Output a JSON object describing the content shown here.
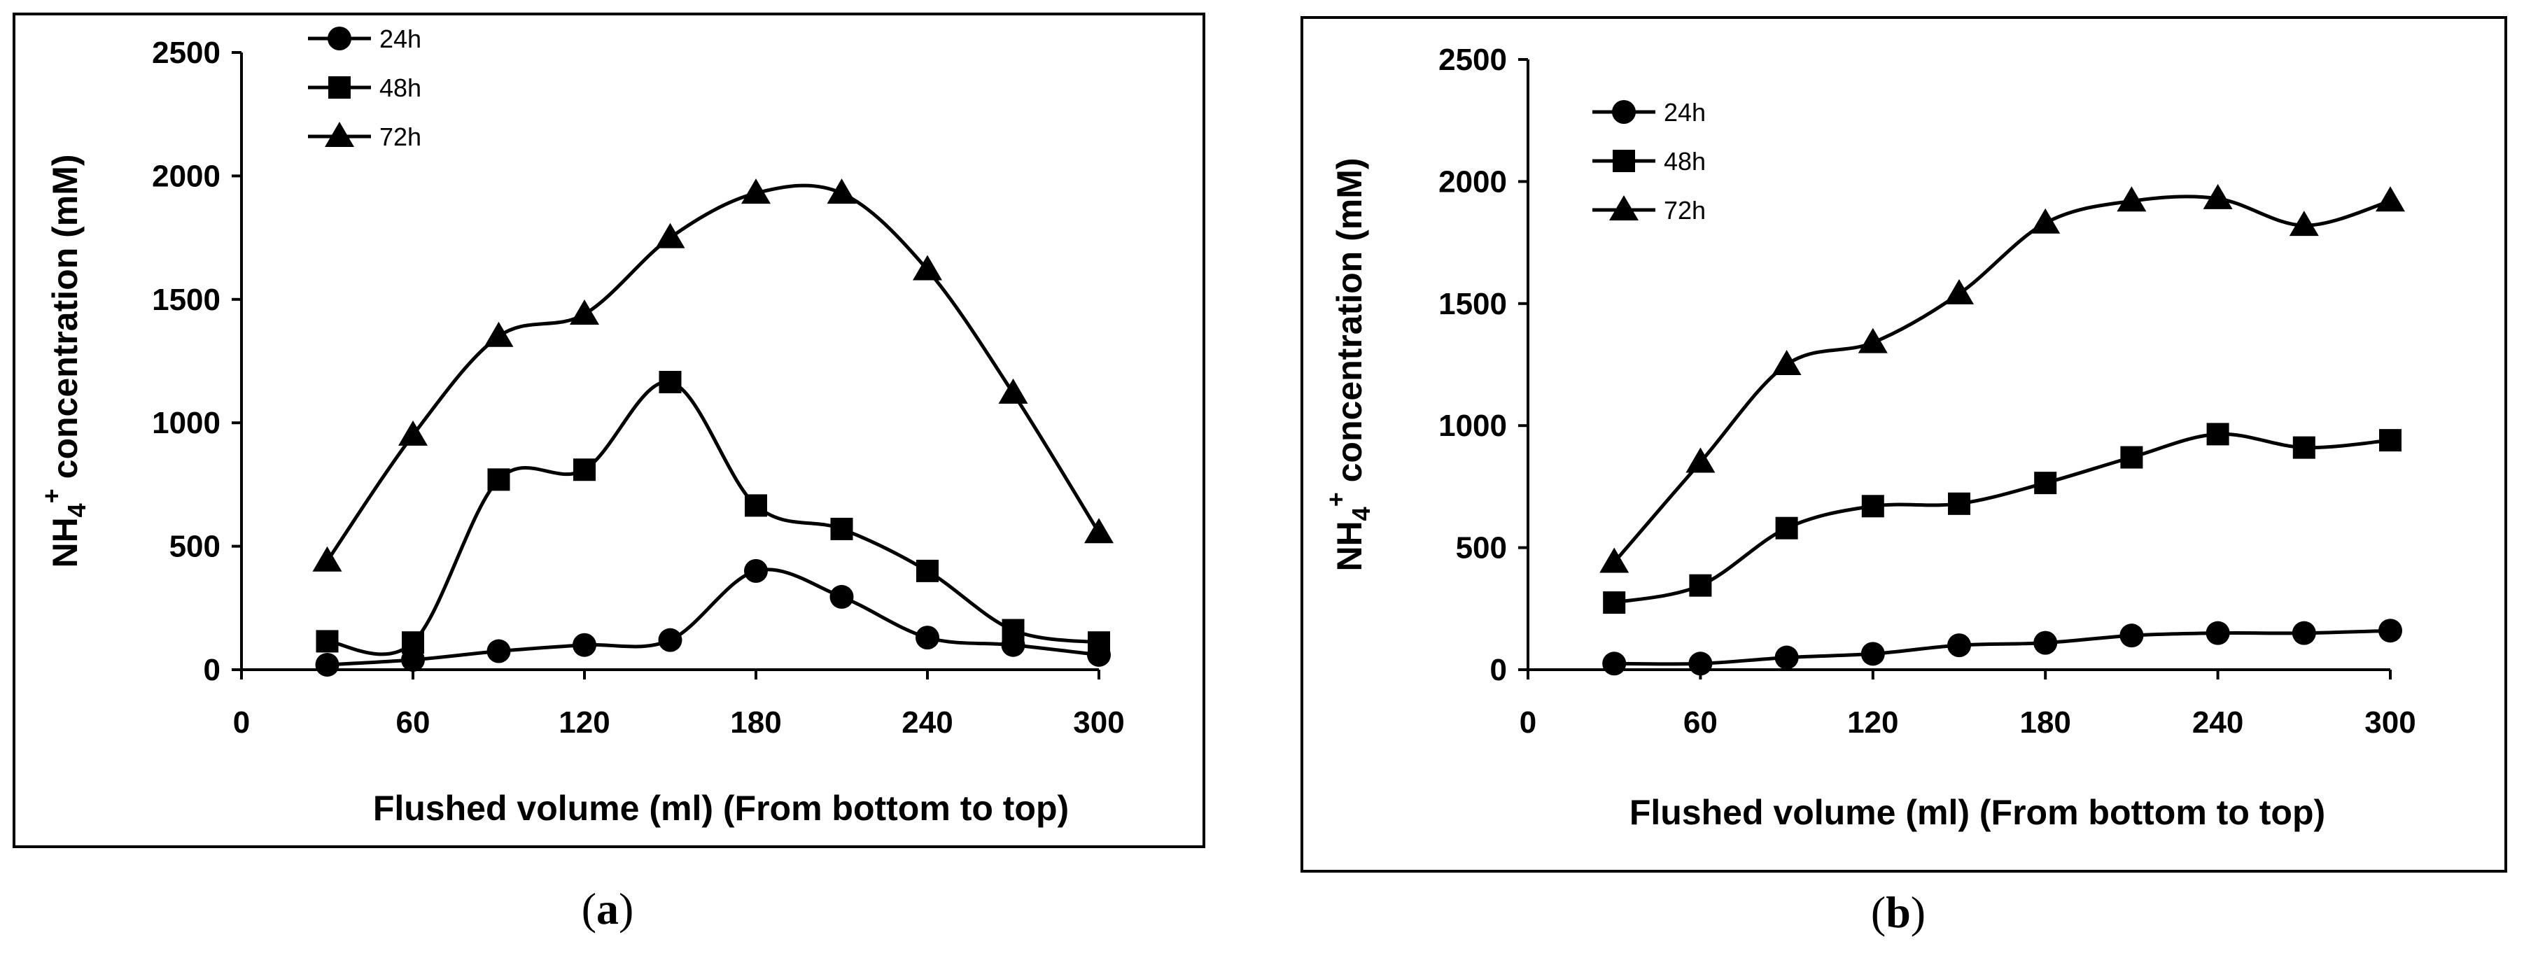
{
  "chart_data": [
    {
      "type": "line",
      "panel_label": "a",
      "title": "",
      "xlabel": "Flushed volume (ml)  (From bottom to top)",
      "ylabel_main": "NH",
      "ylabel_sub": "4",
      "ylabel_sup": "+",
      "ylabel_rest": " concentration (mM)",
      "xlim": [
        0,
        300
      ],
      "ylim": [
        0,
        2500
      ],
      "xticks": [
        "0",
        "60",
        "120",
        "180",
        "240",
        "300"
      ],
      "yticks": [
        "0",
        "500",
        "1000",
        "1500",
        "2000",
        "2500"
      ],
      "legend_position": "top-left",
      "series": [
        {
          "name": "24h",
          "marker": "circle",
          "x": [
            30,
            60,
            90,
            120,
            150,
            180,
            210,
            240,
            270,
            300
          ],
          "values": [
            20,
            40,
            75,
            100,
            120,
            400,
            295,
            130,
            100,
            60
          ]
        },
        {
          "name": "48h",
          "marker": "square",
          "x": [
            30,
            60,
            90,
            120,
            150,
            180,
            210,
            240,
            270,
            300
          ],
          "values": [
            115,
            110,
            770,
            810,
            1165,
            665,
            570,
            400,
            160,
            110
          ]
        },
        {
          "name": "72h",
          "marker": "triangle",
          "x": [
            30,
            60,
            90,
            120,
            150,
            180,
            210,
            240,
            270,
            300
          ],
          "values": [
            440,
            950,
            1350,
            1440,
            1750,
            1930,
            1930,
            1620,
            1120,
            555
          ]
        }
      ]
    },
    {
      "type": "line",
      "panel_label": "b",
      "title": "",
      "xlabel": "Flushed volume (ml)  (From bottom to top)",
      "ylabel_main": "NH",
      "ylabel_sub": "4",
      "ylabel_sup": "+",
      "ylabel_rest": " concentration (mM)",
      "xlim": [
        0,
        300
      ],
      "ylim": [
        0,
        2500
      ],
      "xticks": [
        "0",
        "60",
        "120",
        "180",
        "240",
        "300"
      ],
      "yticks": [
        "0",
        "500",
        "1000",
        "1500",
        "2000",
        "2500"
      ],
      "legend_position": "top-left",
      "series": [
        {
          "name": "24h",
          "marker": "circle",
          "x": [
            30,
            60,
            90,
            120,
            150,
            180,
            210,
            240,
            270,
            300
          ],
          "values": [
            25,
            25,
            50,
            65,
            100,
            110,
            140,
            150,
            150,
            160
          ]
        },
        {
          "name": "48h",
          "marker": "square",
          "x": [
            30,
            60,
            90,
            120,
            150,
            180,
            210,
            240,
            270,
            300
          ],
          "values": [
            275,
            345,
            580,
            670,
            680,
            765,
            870,
            965,
            910,
            940
          ]
        },
        {
          "name": "72h",
          "marker": "triangle",
          "x": [
            30,
            60,
            90,
            120,
            150,
            180,
            210,
            240,
            270,
            300
          ],
          "values": [
            440,
            850,
            1250,
            1340,
            1540,
            1830,
            1920,
            1930,
            1820,
            1920
          ]
        }
      ]
    }
  ]
}
